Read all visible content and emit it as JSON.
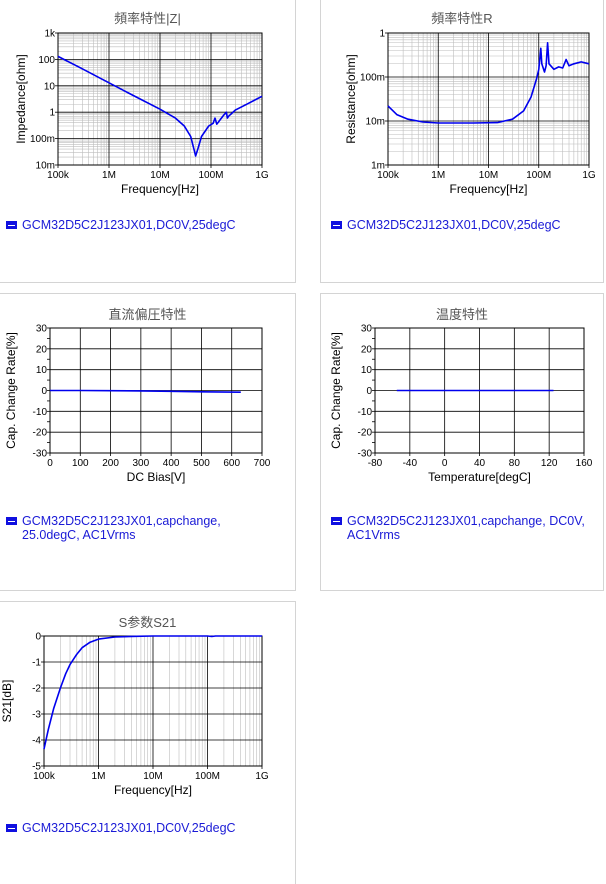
{
  "charts": [
    {
      "title": "頻率特性|Z|",
      "legend": "GCM32D5C2J123JX01,DC0V,25degC",
      "chart_data": {
        "type": "line",
        "xscale": "log",
        "yscale": "log",
        "xlim": [
          100000,
          1000000000
        ],
        "ylim": [
          0.01,
          1000
        ],
        "xlabel": "Frequency[Hz]",
        "ylabel": "Impedance[ohm]",
        "xticks": [
          {
            "v": 100000,
            "label": "100k"
          },
          {
            "v": 1000000,
            "label": "1M"
          },
          {
            "v": 10000000,
            "label": "10M"
          },
          {
            "v": 100000000,
            "label": "100M"
          },
          {
            "v": 1000000000,
            "label": "1G"
          }
        ],
        "yticks": [
          {
            "v": 0.01,
            "label": "10m"
          },
          {
            "v": 0.1,
            "label": "100m"
          },
          {
            "v": 1,
            "label": "1"
          },
          {
            "v": 10,
            "label": "10"
          },
          {
            "v": 100,
            "label": "100"
          },
          {
            "v": 1000,
            "label": "1k"
          }
        ],
        "grid": true,
        "color": "#0000ee",
        "series": [
          {
            "points": [
              [
                100000,
                130
              ],
              [
                300000,
                44
              ],
              [
                1000000,
                13
              ],
              [
                3000000,
                4.3
              ],
              [
                10000000,
                1.3
              ],
              [
                20000000,
                0.6
              ],
              [
                30000000,
                0.3
              ],
              [
                40000000,
                0.12
              ],
              [
                47000000,
                0.035
              ],
              [
                50000000,
                0.022
              ],
              [
                55000000,
                0.04
              ],
              [
                65000000,
                0.12
              ],
              [
                90000000,
                0.3
              ],
              [
                110000000,
                0.38
              ],
              [
                120000000,
                0.6
              ],
              [
                130000000,
                0.35
              ],
              [
                160000000,
                0.6
              ],
              [
                180000000,
                0.8
              ],
              [
                200000000,
                1.0
              ],
              [
                210000000,
                0.6
              ],
              [
                220000000,
                0.7
              ],
              [
                300000000,
                1.2
              ],
              [
                500000000,
                2
              ],
              [
                1000000000,
                4
              ]
            ]
          }
        ]
      }
    },
    {
      "title": "頻率特性R",
      "legend": "GCM32D5C2J123JX01,DC0V,25degC",
      "chart_data": {
        "type": "line",
        "xscale": "log",
        "yscale": "log",
        "xlim": [
          100000,
          1000000000
        ],
        "ylim": [
          0.001,
          1
        ],
        "xlabel": "Frequency[Hz]",
        "ylabel": "Resistance[ohm]",
        "xticks": [
          {
            "v": 100000,
            "label": "100k"
          },
          {
            "v": 1000000,
            "label": "1M"
          },
          {
            "v": 10000000,
            "label": "10M"
          },
          {
            "v": 100000000,
            "label": "100M"
          },
          {
            "v": 1000000000,
            "label": "1G"
          }
        ],
        "yticks": [
          {
            "v": 0.001,
            "label": "1m"
          },
          {
            "v": 0.01,
            "label": "10m"
          },
          {
            "v": 0.1,
            "label": "100m"
          },
          {
            "v": 1,
            "label": "1"
          }
        ],
        "grid": true,
        "color": "#0000ee",
        "series": [
          {
            "points": [
              [
                100000,
                0.022
              ],
              [
                150000,
                0.014
              ],
              [
                250000,
                0.011
              ],
              [
                500000,
                0.0095
              ],
              [
                1000000,
                0.009
              ],
              [
                5000000,
                0.009
              ],
              [
                15000000,
                0.0092
              ],
              [
                30000000,
                0.011
              ],
              [
                50000000,
                0.017
              ],
              [
                70000000,
                0.035
              ],
              [
                90000000,
                0.09
              ],
              [
                100000000,
                0.15
              ],
              [
                110000000,
                0.45
              ],
              [
                115000000,
                0.2
              ],
              [
                130000000,
                0.13
              ],
              [
                140000000,
                0.18
              ],
              [
                150000000,
                0.6
              ],
              [
                160000000,
                0.2
              ],
              [
                200000000,
                0.15
              ],
              [
                250000000,
                0.17
              ],
              [
                300000000,
                0.16
              ],
              [
                350000000,
                0.25
              ],
              [
                400000000,
                0.18
              ],
              [
                500000000,
                0.2
              ],
              [
                700000000,
                0.22
              ],
              [
                1000000000,
                0.2
              ]
            ]
          }
        ]
      }
    },
    {
      "title": "直流偏圧特性",
      "legend": "GCM32D5C2J123JX01,capchange,\n25.0degC, AC1Vrms",
      "chart_data": {
        "type": "line",
        "xscale": "linear",
        "yscale": "linear",
        "xlim": [
          0,
          700
        ],
        "ylim": [
          -30,
          30
        ],
        "xlabel": "DC Bias[V]",
        "ylabel": "Cap. Change Rate[%]",
        "xticks": [
          {
            "v": 0,
            "label": "0"
          },
          {
            "v": 100,
            "label": "100"
          },
          {
            "v": 200,
            "label": "200"
          },
          {
            "v": 300,
            "label": "300"
          },
          {
            "v": 400,
            "label": "400"
          },
          {
            "v": 500,
            "label": "500"
          },
          {
            "v": 600,
            "label": "600"
          },
          {
            "v": 700,
            "label": "700"
          }
        ],
        "yticks": [
          {
            "v": -30,
            "label": "-30"
          },
          {
            "v": -20,
            "label": "-20"
          },
          {
            "v": -10,
            "label": "-10"
          },
          {
            "v": 0,
            "label": "0"
          },
          {
            "v": 10,
            "label": "10"
          },
          {
            "v": 20,
            "label": "20"
          },
          {
            "v": 30,
            "label": "30"
          }
        ],
        "minor_y": 5,
        "grid": true,
        "color": "#0000ee",
        "series": [
          {
            "points": [
              [
                0,
                0
              ],
              [
                100,
                0
              ],
              [
                200,
                -0.1
              ],
              [
                300,
                -0.2
              ],
              [
                400,
                -0.4
              ],
              [
                500,
                -0.6
              ],
              [
                630,
                -0.8
              ]
            ]
          }
        ]
      }
    },
    {
      "title": "温度特性",
      "legend": "GCM32D5C2J123JX01,capchange, DC0V,\nAC1Vrms",
      "chart_data": {
        "type": "line",
        "xscale": "linear",
        "yscale": "linear",
        "xlim": [
          -80,
          160
        ],
        "ylim": [
          -30,
          30
        ],
        "xlabel": "Temperature[degC]",
        "ylabel": "Cap. Change Rate[%]",
        "xticks": [
          {
            "v": -80,
            "label": "-80"
          },
          {
            "v": -40,
            "label": "-40"
          },
          {
            "v": 0,
            "label": "0"
          },
          {
            "v": 40,
            "label": "40"
          },
          {
            "v": 80,
            "label": "80"
          },
          {
            "v": 120,
            "label": "120"
          },
          {
            "v": 160,
            "label": "160"
          }
        ],
        "yticks": [
          {
            "v": -30,
            "label": "-30"
          },
          {
            "v": -20,
            "label": "-20"
          },
          {
            "v": -10,
            "label": "-10"
          },
          {
            "v": 0,
            "label": "0"
          },
          {
            "v": 10,
            "label": "10"
          },
          {
            "v": 20,
            "label": "20"
          },
          {
            "v": 30,
            "label": "30"
          }
        ],
        "minor_y": 5,
        "grid": true,
        "color": "#0000ee",
        "series": [
          {
            "points": [
              [
                -55,
                0
              ],
              [
                0,
                0
              ],
              [
                25,
                0
              ],
              [
                60,
                0
              ],
              [
                100,
                0
              ],
              [
                125,
                0
              ]
            ]
          }
        ]
      }
    },
    {
      "title": "S参数S21",
      "legend": "GCM32D5C2J123JX01,DC0V,25degC",
      "chart_data": {
        "type": "line",
        "xscale": "log",
        "yscale": "linear",
        "xlim": [
          100000,
          1000000000
        ],
        "ylim": [
          -5,
          0
        ],
        "xlabel": "Frequency[Hz]",
        "ylabel": "S21[dB]",
        "xticks": [
          {
            "v": 100000,
            "label": "100k"
          },
          {
            "v": 1000000,
            "label": "1M"
          },
          {
            "v": 10000000,
            "label": "10M"
          },
          {
            "v": 100000000,
            "label": "100M"
          },
          {
            "v": 1000000000,
            "label": "1G"
          }
        ],
        "yticks": [
          {
            "v": -5,
            "label": "-5"
          },
          {
            "v": -4,
            "label": "-4"
          },
          {
            "v": -3,
            "label": "-3"
          },
          {
            "v": -2,
            "label": "-2"
          },
          {
            "v": -1,
            "label": "-1"
          },
          {
            "v": 0,
            "label": "0"
          }
        ],
        "grid": true,
        "color": "#0000ee",
        "series": [
          {
            "points": [
              [
                100000,
                -4.35
              ],
              [
                120000,
                -3.6
              ],
              [
                150000,
                -2.8
              ],
              [
                200000,
                -2.0
              ],
              [
                250000,
                -1.45
              ],
              [
                300000,
                -1.1
              ],
              [
                400000,
                -0.7
              ],
              [
                500000,
                -0.45
              ],
              [
                700000,
                -0.24
              ],
              [
                1000000,
                -0.12
              ],
              [
                2000000,
                -0.04
              ],
              [
                5000000,
                -0.01
              ],
              [
                10000000,
                0
              ],
              [
                100000000,
                0
              ],
              [
                120000000,
                -0.02
              ],
              [
                140000000,
                0
              ],
              [
                1000000000,
                0
              ]
            ]
          }
        ]
      }
    }
  ]
}
